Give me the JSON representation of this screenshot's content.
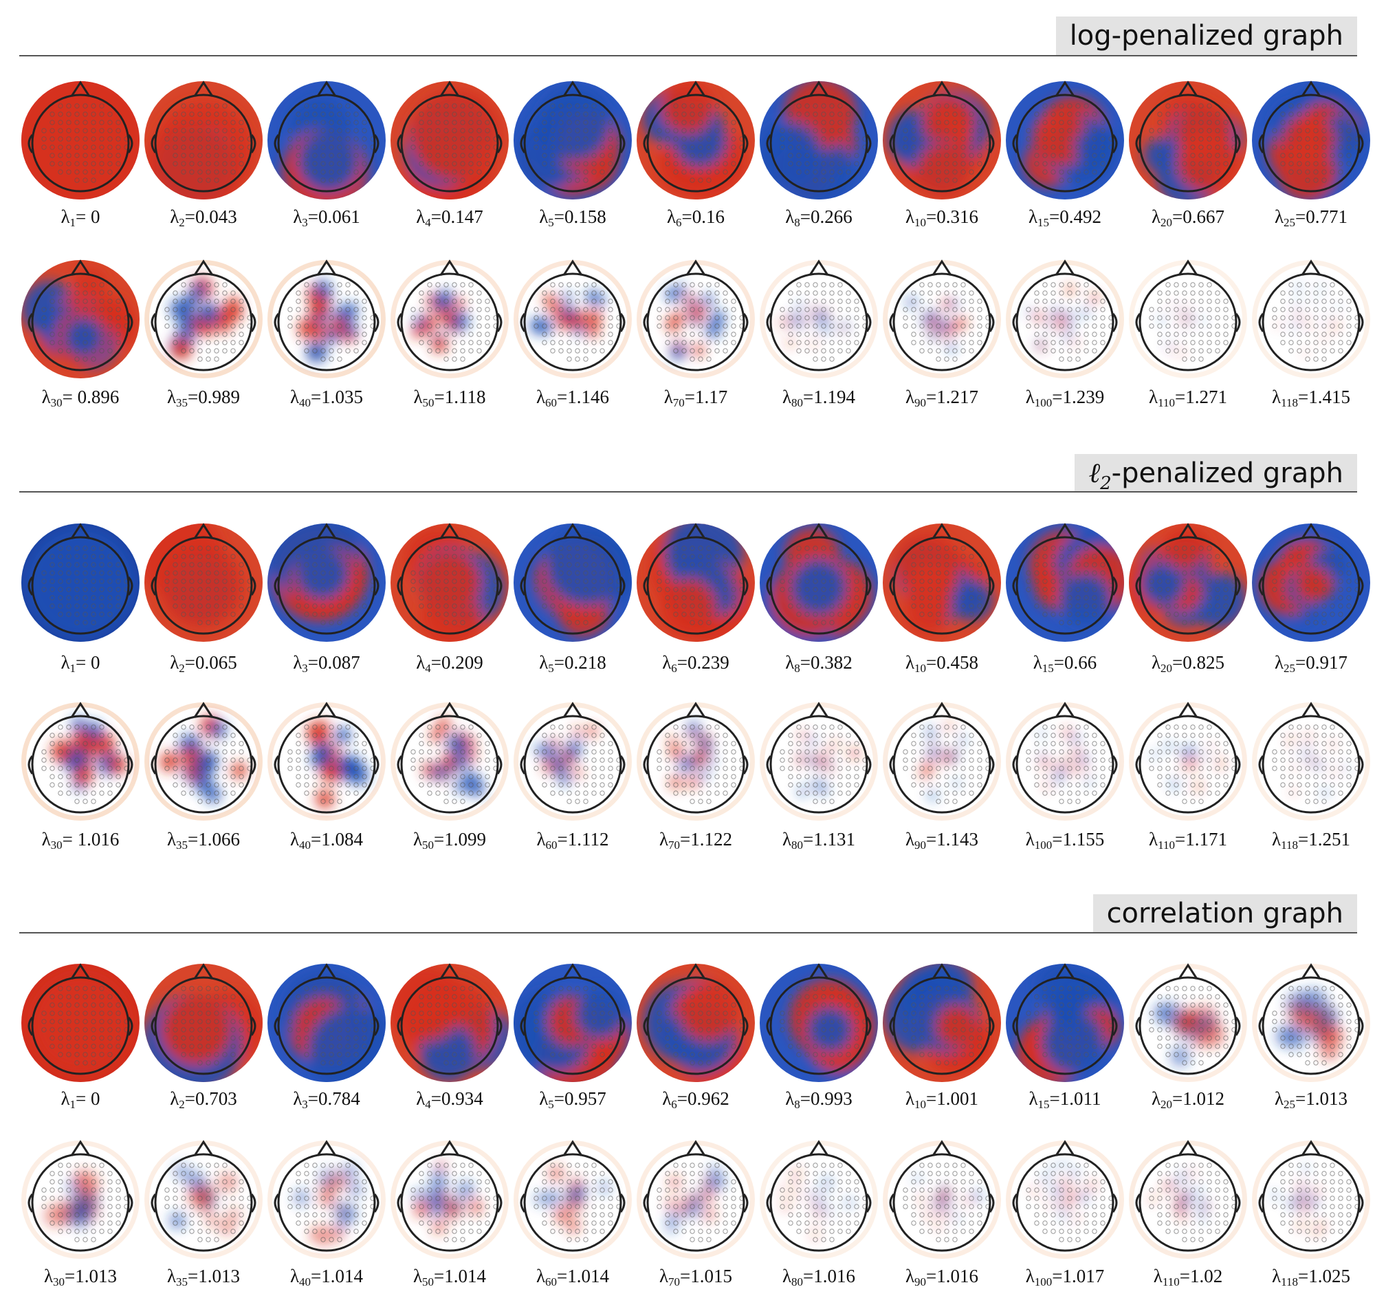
{
  "sections": [
    {
      "title": "log-penalized graph",
      "row1": [
        {
          "sub": "1",
          "value": " 0"
        },
        {
          "sub": "2",
          "value": "0.043"
        },
        {
          "sub": "3",
          "value": "0.061"
        },
        {
          "sub": "4",
          "value": "0.147"
        },
        {
          "sub": "5",
          "value": "0.158"
        },
        {
          "sub": "6",
          "value": "0.16"
        },
        {
          "sub": "8",
          "value": "0.266"
        },
        {
          "sub": "10",
          "value": "0.316"
        },
        {
          "sub": "15",
          "value": "0.492"
        },
        {
          "sub": "20",
          "value": "0.667"
        },
        {
          "sub": "25",
          "value": "0.771"
        }
      ],
      "row2": [
        {
          "sub": "30",
          "value": " 0.896"
        },
        {
          "sub": "35",
          "value": "0.989"
        },
        {
          "sub": "40",
          "value": "1.035"
        },
        {
          "sub": "50",
          "value": "1.118"
        },
        {
          "sub": "60",
          "value": "1.146"
        },
        {
          "sub": "70",
          "value": "1.17"
        },
        {
          "sub": "80",
          "value": "1.194"
        },
        {
          "sub": "90",
          "value": "1.217"
        },
        {
          "sub": "100",
          "value": "1.239"
        },
        {
          "sub": "110",
          "value": "1.271"
        },
        {
          "sub": "118",
          "value": "1.415"
        }
      ]
    },
    {
      "title_prefix": "ℓ",
      "title_sub": "2",
      "title": "-penalized graph",
      "row1": [
        {
          "sub": "1",
          "value": " 0"
        },
        {
          "sub": "2",
          "value": "0.065"
        },
        {
          "sub": "3",
          "value": "0.087"
        },
        {
          "sub": "4",
          "value": "0.209"
        },
        {
          "sub": "5",
          "value": "0.218"
        },
        {
          "sub": "6",
          "value": "0.239"
        },
        {
          "sub": "8",
          "value": "0.382"
        },
        {
          "sub": "10",
          "value": "0.458"
        },
        {
          "sub": "15",
          "value": "0.66"
        },
        {
          "sub": "20",
          "value": "0.825"
        },
        {
          "sub": "25",
          "value": "0.917"
        }
      ],
      "row2": [
        {
          "sub": "30",
          "value": " 1.016"
        },
        {
          "sub": "35",
          "value": "1.066"
        },
        {
          "sub": "40",
          "value": "1.084"
        },
        {
          "sub": "50",
          "value": "1.099"
        },
        {
          "sub": "60",
          "value": "1.112"
        },
        {
          "sub": "70",
          "value": "1.122"
        },
        {
          "sub": "80",
          "value": "1.131"
        },
        {
          "sub": "90",
          "value": "1.143"
        },
        {
          "sub": "100",
          "value": "1.155"
        },
        {
          "sub": "110",
          "value": "1.171"
        },
        {
          "sub": "118",
          "value": "1.251"
        }
      ]
    },
    {
      "title": "correlation graph",
      "row1": [
        {
          "sub": "1",
          "value": " 0"
        },
        {
          "sub": "2",
          "value": "0.703"
        },
        {
          "sub": "3",
          "value": "0.784"
        },
        {
          "sub": "4",
          "value": "0.934"
        },
        {
          "sub": "5",
          "value": "0.957"
        },
        {
          "sub": "6",
          "value": "0.962"
        },
        {
          "sub": "8",
          "value": "0.993"
        },
        {
          "sub": "10",
          "value": "1.001"
        },
        {
          "sub": "15",
          "value": "1.011"
        },
        {
          "sub": "20",
          "value": "1.012"
        },
        {
          "sub": "25",
          "value": "1.013"
        }
      ],
      "row2": [
        {
          "sub": "30",
          "value": "1.013"
        },
        {
          "sub": "35",
          "value": "1.013"
        },
        {
          "sub": "40",
          "value": "1.014"
        },
        {
          "sub": "50",
          "value": "1.014"
        },
        {
          "sub": "60",
          "value": "1.014"
        },
        {
          "sub": "70",
          "value": "1.015"
        },
        {
          "sub": "80",
          "value": "1.016"
        },
        {
          "sub": "90",
          "value": "1.016"
        },
        {
          "sub": "100",
          "value": "1.017"
        },
        {
          "sub": "110",
          "value": "1.02"
        },
        {
          "sub": "118",
          "value": "1.025"
        }
      ]
    }
  ],
  "eigenvalue_symbol": "λ",
  "colors": {
    "positive": "#d7301f",
    "negative": "#1f4fb5",
    "outline": "#222222",
    "title_bg": "#e3e3e3"
  }
}
